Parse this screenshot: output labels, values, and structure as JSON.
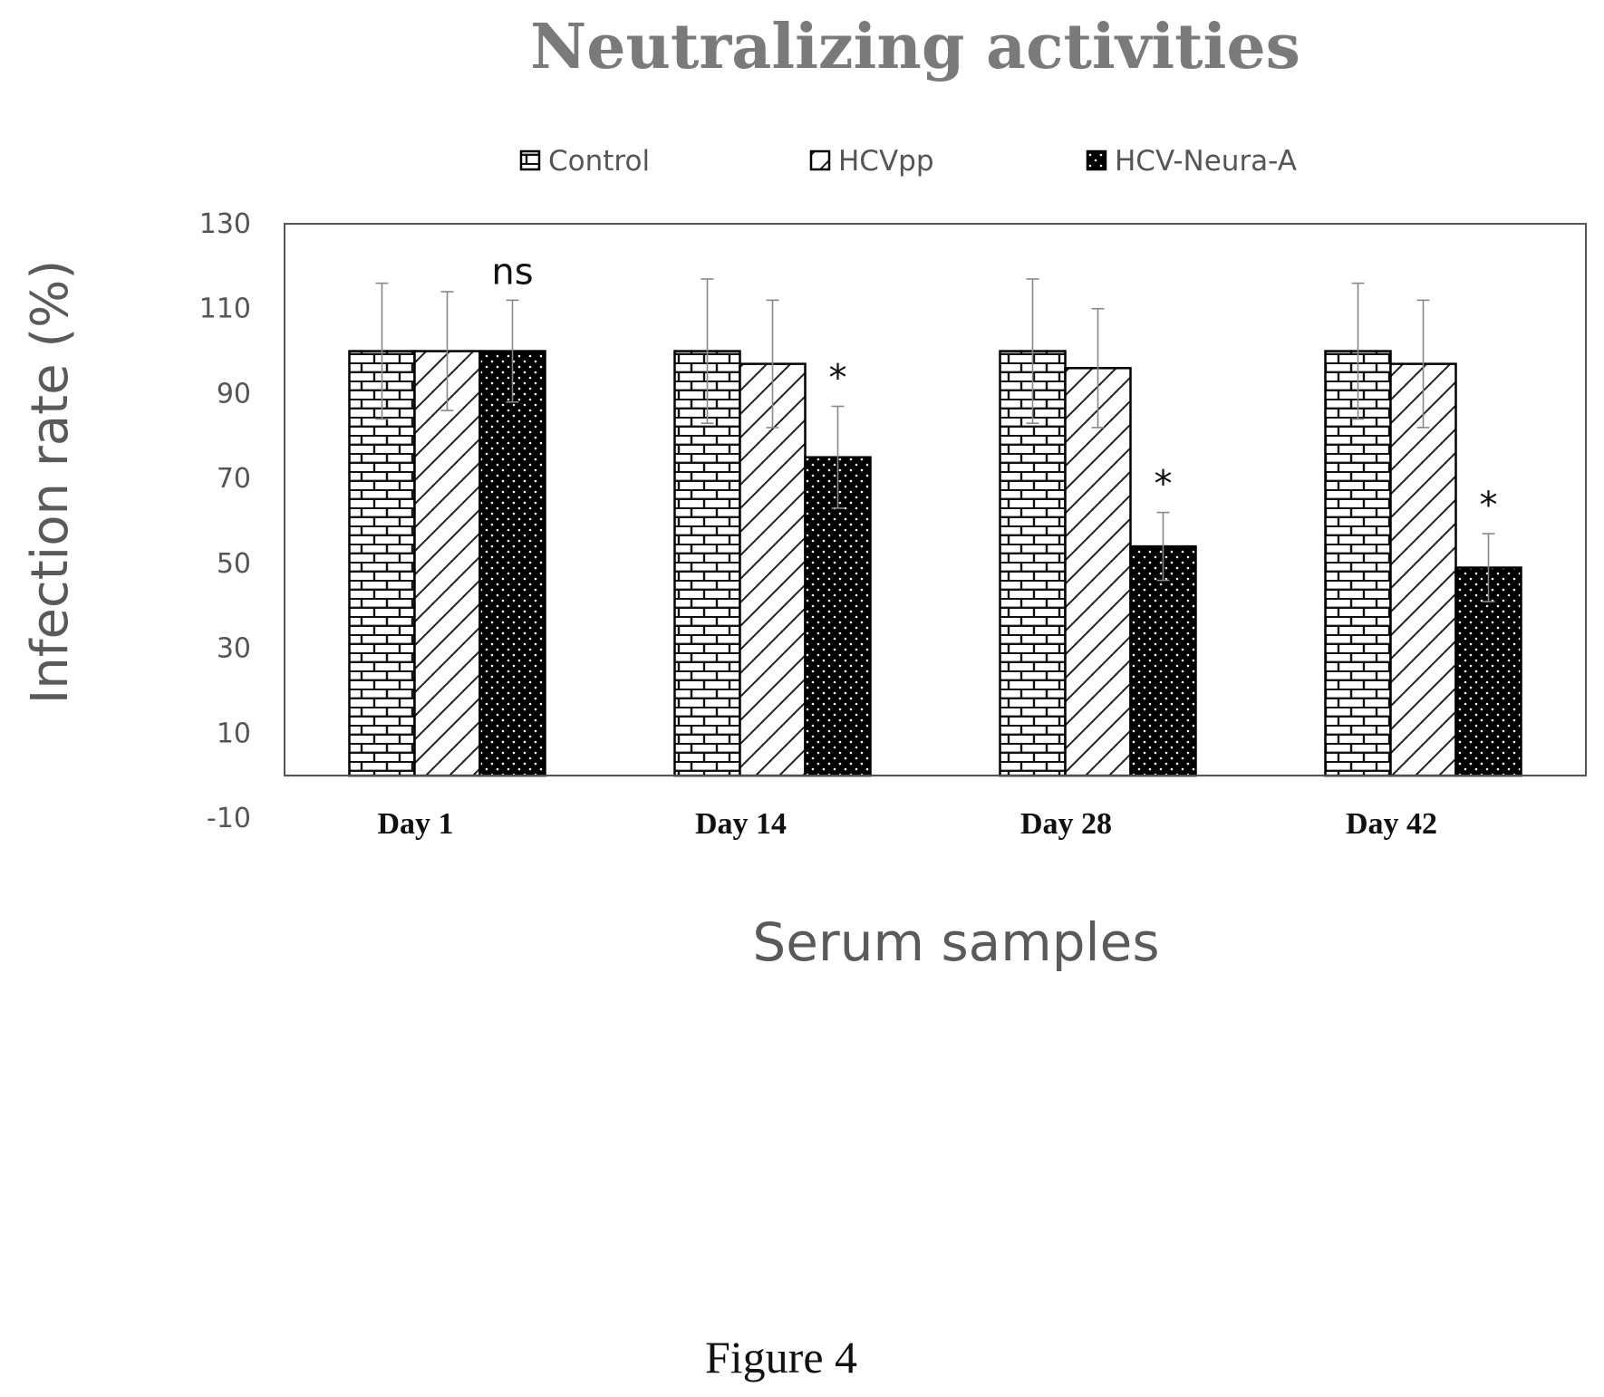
{
  "chart_data": {
    "type": "bar",
    "title": "Neutralizing activities",
    "xlabel": "Serum samples",
    "ylabel": "Infection rate (%)",
    "ylim": [
      -10,
      130
    ],
    "yticks": [
      130,
      110,
      90,
      70,
      50,
      30,
      10,
      -10
    ],
    "categories": [
      "Day 1",
      "Day 14",
      "Day 28",
      "Day 42"
    ],
    "series": [
      {
        "name": "Control",
        "values": [
          100,
          100,
          100,
          100
        ],
        "errors": [
          16,
          17,
          17,
          16
        ],
        "pattern": "brick"
      },
      {
        "name": "HCVpp",
        "values": [
          100,
          97,
          96,
          97
        ],
        "errors": [
          14,
          15,
          14,
          15
        ],
        "pattern": "diagonal"
      },
      {
        "name": "HCV-Neura-A",
        "values": [
          100,
          75,
          54,
          49
        ],
        "errors": [
          12,
          12,
          8,
          8
        ],
        "pattern": "dots"
      }
    ],
    "annotations": [
      "ns",
      "*",
      "*",
      "*"
    ],
    "legend_position": "top",
    "grid": false,
    "caption": "Figure 4"
  }
}
